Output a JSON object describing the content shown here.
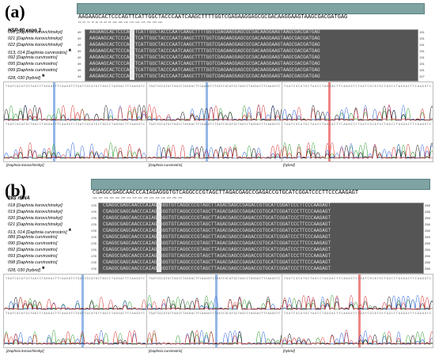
{
  "panel_a": {
    "letter": "(a)",
    "gene": "HSP-90 exon 3",
    "consensus": "AAGAAGCACTCCCAGTTCATTGGCTACCCAATCAAGCTTTTGGTCGAGAAGGAGCGCGACAAGGAAGTAAGCGACGATGAG",
    "ruler": "60  65  70  75  80  85  90  95  100  105  110  115  120  125  130  135  140",
    "start_pos": "49",
    "end_pos": "131",
    "samples": [
      {
        "id": "018",
        "species": "Daphnia korovchinskyi",
        "star": "",
        "left": "49",
        "right": "131"
      },
      {
        "id": "021",
        "species": "Daphnia korovchinskyi",
        "star": "",
        "left": "49",
        "right": "131"
      },
      {
        "id": "022",
        "species": "Daphnia korovchinskyi",
        "star": "",
        "left": "49",
        "right": "131"
      },
      {
        "id": "013, 014",
        "species": "Daphnia curvirostris",
        "star": "*",
        "left": "49",
        "right": "131"
      },
      {
        "id": "092",
        "species": "Daphnia curvirostris",
        "star": "",
        "left": "49",
        "right": "131"
      },
      {
        "id": "095",
        "species": "Daphnia curvirostris",
        "star": "",
        "left": "49",
        "right": "131"
      },
      {
        "id": "099",
        "species": "Daphnia curvirostris",
        "star": "",
        "left": "49",
        "right": "131"
      },
      {
        "id": "028, 030",
        "species": "hybrid",
        "star": "*",
        "left": "44",
        "right": "127"
      }
    ],
    "captions": [
      "[Daphnia korovchinskyi]",
      "[Daphnia curvirostris]",
      "[hybrid]"
    ]
  },
  "panel_b": {
    "letter": "(b)",
    "gene": "28S rRNA",
    "consensus": "CGAGGCGAGCAACCCAIAGAGGGTGTCAGGCCCGTAGCTTAGACGAGCCGAGACCGTGCATCGGATCCCTTCCCAAGAGT",
    "ruler": "180  185  190  195  200  205  210  215  220  225  230  235  240  245  250  255",
    "start_pos": "178",
    "end_pos": "258",
    "samples": [
      {
        "id": "018",
        "species": "Daphnia korovchinskyi",
        "star": "",
        "left": "178",
        "right": "258"
      },
      {
        "id": "019",
        "species": "Daphnia korovchinskyi",
        "star": "",
        "left": "178",
        "right": "258"
      },
      {
        "id": "020",
        "species": "Daphnia korovchinskyi",
        "star": "",
        "left": "178",
        "right": "258"
      },
      {
        "id": "021",
        "species": "Daphnia korovchinskyi",
        "star": "",
        "left": "178",
        "right": "258"
      },
      {
        "id": "013, 014",
        "species": "Daphnia curvirostris",
        "star": "*",
        "left": "178",
        "right": "258"
      },
      {
        "id": "089",
        "species": "Daphnia curvirostris",
        "star": "",
        "left": "178",
        "right": "258"
      },
      {
        "id": "090",
        "species": "Daphnia curvirostris",
        "star": "",
        "left": "178",
        "right": "258"
      },
      {
        "id": "092",
        "species": "Daphnia curvirostris",
        "star": "",
        "left": "178",
        "right": "258"
      },
      {
        "id": "093",
        "species": "Daphnia curvirostris",
        "star": "",
        "left": "178",
        "right": "258"
      },
      {
        "id": "098",
        "species": "Daphnia curvirostris",
        "star": "",
        "left": "178",
        "right": "258"
      },
      {
        "id": "028, 030",
        "species": "hybrid",
        "star": "*",
        "left": "178",
        "right": "258"
      }
    ],
    "captions": [
      "[Daphnia korovchinskyi]",
      "[Daphnia curvirostris]",
      "[hybrid]"
    ]
  },
  "colors": {
    "A": "#2e9a2e",
    "C": "#2b5fd9",
    "G": "#111111",
    "T": "#d62a2a",
    "marker_blue": "#3a7bd5",
    "marker_red": "#e02020"
  }
}
